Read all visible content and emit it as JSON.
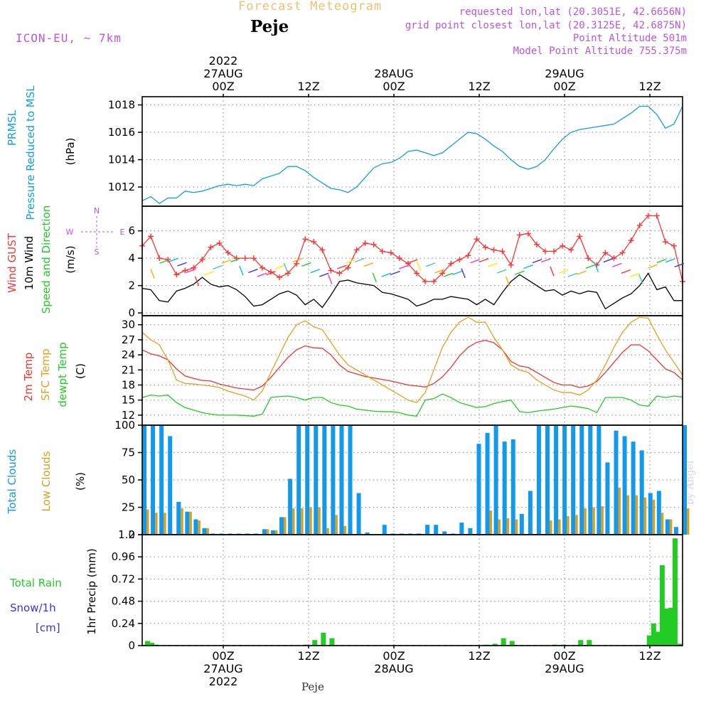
{
  "header": {
    "title": "Forecast Meteogram",
    "location": "Peje",
    "model": "ICON-EU, ~ 7km",
    "info": [
      "requested lon,lat (20.3051E, 42.6656N)",
      "grid point closest lon,lat (20.3125E, 42.6875N)",
      "Point Altitude 501m",
      "Model Point Altitude 755.375m"
    ]
  },
  "footer": {
    "location": "Peje",
    "watermark": "by Angel"
  },
  "time_axis": {
    "ticks": [
      {
        "lines_top": [
          "2022",
          "27AUG",
          "00Z"
        ],
        "lines_bottom": [
          "00Z",
          "27AUG",
          "2022"
        ]
      },
      {
        "lines_top": [
          "12Z"
        ],
        "lines_bottom": [
          "12Z"
        ]
      },
      {
        "lines_top": [
          "28AUG",
          "00Z"
        ],
        "lines_bottom": [
          "00Z",
          "28AUG"
        ]
      },
      {
        "lines_top": [
          "12Z"
        ],
        "lines_bottom": [
          "12Z"
        ]
      },
      {
        "lines_top": [
          "29AUG",
          "00Z"
        ],
        "lines_bottom": [
          "00Z",
          "29AUG"
        ]
      },
      {
        "lines_top": [
          "12Z"
        ],
        "lines_bottom": [
          "12Z"
        ]
      }
    ]
  },
  "colors": {
    "pressure": "#119ee6",
    "gust": "#ff3333",
    "wind": "#000000",
    "wind_dir_label": "#22cc22",
    "temp": "#ee3333",
    "sfc_temp": "#e6a020",
    "dewpt": "#22cc22",
    "total_clouds": "#1199ee",
    "low_clouds": "#d6a020",
    "rain": "#22cc22",
    "snow": "#3333ee",
    "header_info": "#bb55dd",
    "title": "#f0c070"
  },
  "chart_data": [
    {
      "type": "line",
      "panel": "pressure",
      "ylabel": [
        "PRMSL",
        "Pressure Reduced to MSL",
        "(hPa)"
      ],
      "ylim": [
        1010.6,
        1018.6
      ],
      "yticks": [
        1012,
        1014,
        1016,
        1018
      ],
      "x_hours": [
        0,
        2,
        4,
        6,
        8,
        10,
        12,
        14,
        16,
        18,
        20,
        22,
        24,
        26,
        28,
        30,
        32,
        34,
        36,
        38,
        40,
        42,
        44,
        46,
        48,
        50,
        52,
        54,
        56,
        58,
        60,
        62,
        64,
        66,
        68,
        70,
        72,
        74,
        76,
        78,
        80,
        82,
        84,
        86,
        88,
        90,
        92,
        94,
        96,
        98,
        100,
        102,
        104,
        106,
        108,
        110,
        112,
        114,
        116,
        118,
        120,
        122,
        124,
        126
      ],
      "series": [
        {
          "values": [
            1011.0,
            1011.3,
            1010.8,
            1011.2,
            1011.2,
            1011.7,
            1011.6,
            1011.7,
            1011.9,
            1012.1,
            1012.2,
            1012.1,
            1012.2,
            1012.1,
            1012.6,
            1012.8,
            1013.0,
            1013.5,
            1013.5,
            1013.2,
            1012.7,
            1012.3,
            1011.9,
            1011.8,
            1011.6,
            1012.0,
            1012.7,
            1013.4,
            1013.7,
            1013.8,
            1014.1,
            1014.6,
            1014.7,
            1014.5,
            1014.3,
            1014.5,
            1015.0,
            1015.5,
            1016.0,
            1015.9,
            1015.5,
            1015.0,
            1014.6,
            1014.0,
            1013.5,
            1013.3,
            1013.5,
            1014.0,
            1014.8,
            1015.5,
            1016.0,
            1016.2,
            1016.3,
            1016.4,
            1016.5,
            1016.6,
            1017.0,
            1017.4,
            1017.9,
            1017.9,
            1017.3,
            1016.3,
            1016.6,
            1017.9
          ]
        }
      ]
    },
    {
      "type": "line",
      "panel": "wind",
      "ylabel": [
        "Wind GUST",
        "10m Wind",
        "Speed and Direction",
        "(m/s)"
      ],
      "compass": [
        "N",
        "W",
        "E",
        "S"
      ],
      "ylim": [
        -0.2,
        7.8
      ],
      "yticks": [
        0,
        2,
        4,
        6
      ],
      "x_hours": [
        0,
        2,
        4,
        6,
        8,
        10,
        12,
        14,
        16,
        18,
        20,
        22,
        24,
        26,
        28,
        30,
        32,
        34,
        36,
        38,
        40,
        42,
        44,
        46,
        48,
        50,
        52,
        54,
        56,
        58,
        60,
        62,
        64,
        66,
        68,
        70,
        72,
        74,
        76,
        78,
        80,
        82,
        84,
        86,
        88,
        90,
        92,
        94,
        96,
        98,
        100,
        102,
        104,
        106,
        108,
        110,
        112,
        114,
        116,
        118,
        120,
        122,
        124,
        126
      ],
      "series": [
        {
          "name": "Wind GUST",
          "values": [
            4.9,
            5.6,
            4.0,
            3.9,
            2.8,
            3.1,
            3.3,
            3.9,
            4.8,
            5.1,
            4.4,
            4.0,
            4.0,
            4.0,
            3.3,
            3.0,
            2.6,
            2.9,
            3.6,
            5.4,
            5.2,
            4.6,
            3.1,
            2.9,
            3.3,
            4.6,
            5.1,
            5.0,
            4.5,
            4.4,
            4.0,
            3.6,
            2.9,
            2.3,
            2.3,
            2.9,
            3.6,
            3.9,
            4.2,
            5.4,
            4.8,
            4.6,
            4.5,
            3.5,
            5.7,
            5.8,
            5.0,
            4.5,
            4.5,
            4.9,
            4.6,
            5.6,
            4.0,
            3.5,
            4.4,
            4.0,
            4.4,
            5.3,
            6.4,
            7.1,
            7.1,
            5.2,
            4.9,
            2.3
          ]
        },
        {
          "name": "10m Wind",
          "values": [
            1.8,
            1.7,
            0.9,
            0.8,
            1.6,
            1.8,
            2.1,
            2.6,
            2.1,
            1.9,
            2.0,
            1.7,
            1.2,
            0.5,
            0.6,
            1.0,
            1.4,
            1.6,
            1.3,
            0.6,
            1.0,
            0.4,
            1.3,
            2.3,
            2.4,
            2.2,
            2.1,
            2.0,
            1.5,
            1.4,
            1.2,
            1.0,
            0.5,
            0.7,
            1.0,
            1.0,
            1.2,
            1.1,
            1.0,
            0.6,
            1.0,
            0.6,
            1.5,
            2.3,
            2.8,
            2.4,
            2.0,
            1.6,
            1.7,
            1.3,
            1.6,
            1.4,
            1.6,
            1.5,
            0.3,
            0.7,
            1.1,
            1.4,
            2.0,
            2.9,
            1.7,
            1.9,
            0.9,
            0.9
          ]
        }
      ]
    },
    {
      "type": "line",
      "panel": "temperature",
      "ylabel": [
        "2m Temp",
        "SFC Temp",
        "dewpt Temp",
        "(C)"
      ],
      "ylim": [
        10,
        31.8
      ],
      "yticks": [
        12,
        15,
        18,
        21,
        24,
        27,
        30
      ],
      "x_hours": [
        0,
        2,
        4,
        6,
        8,
        10,
        12,
        14,
        16,
        18,
        20,
        22,
        24,
        26,
        28,
        30,
        32,
        34,
        36,
        38,
        40,
        42,
        44,
        46,
        48,
        50,
        52,
        54,
        56,
        58,
        60,
        62,
        64,
        66,
        68,
        70,
        72,
        74,
        76,
        78,
        80,
        82,
        84,
        86,
        88,
        90,
        92,
        94,
        96,
        98,
        100,
        102,
        104,
        106,
        108,
        110,
        112,
        114,
        116,
        118,
        120,
        122,
        124,
        126
      ],
      "series": [
        {
          "name": "2m Temp",
          "values": [
            25.0,
            24.2,
            23.8,
            23.0,
            21.2,
            19.8,
            19.3,
            18.9,
            18.8,
            18.2,
            17.8,
            17.4,
            17.2,
            17.0,
            17.8,
            19.5,
            21.5,
            23.5,
            25.0,
            25.8,
            25.4,
            25.3,
            24.0,
            22.0,
            20.7,
            20.2,
            19.7,
            19.4,
            19.1,
            18.8,
            18.4,
            18.0,
            17.8,
            17.6,
            18.3,
            19.6,
            21.5,
            23.8,
            25.5,
            26.5,
            26.9,
            26.4,
            25.0,
            22.7,
            21.8,
            21.5,
            20.5,
            19.5,
            18.5,
            18.0,
            18.0,
            17.5,
            17.8,
            18.7,
            20.5,
            22.5,
            24.5,
            26.0,
            26.0,
            24.8,
            23.0,
            21.2,
            20.5,
            19.0
          ]
        },
        {
          "name": "SFC Temp",
          "values": [
            28.5,
            27.0,
            26.0,
            23.0,
            19.0,
            18.3,
            18.2,
            18.0,
            17.8,
            17.5,
            16.8,
            16.3,
            15.8,
            15.0,
            16.8,
            20.5,
            24.0,
            27.5,
            30.0,
            30.8,
            29.6,
            29.0,
            26.5,
            24.0,
            22.0,
            21.0,
            20.0,
            19.0,
            18.0,
            17.0,
            16.0,
            15.0,
            14.5,
            16.5,
            21.0,
            25.5,
            28.5,
            30.5,
            31.5,
            30.5,
            30.5,
            27.5,
            25.0,
            22.0,
            21.0,
            20.5,
            19.0,
            18.0,
            17.0,
            16.5,
            16.5,
            16.0,
            17.0,
            19.0,
            22.0,
            25.5,
            28.5,
            30.5,
            31.5,
            31.3,
            28.0,
            25.0,
            22.5,
            20.0
          ]
        },
        {
          "name": "dewpt Temp",
          "values": [
            15.5,
            16.0,
            15.8,
            16.0,
            14.5,
            13.5,
            13.0,
            12.5,
            12.2,
            12.0,
            12.0,
            12.0,
            11.9,
            11.8,
            12.2,
            15.5,
            15.7,
            15.8,
            15.5,
            15.0,
            15.5,
            15.5,
            14.5,
            14.0,
            13.8,
            13.2,
            13.0,
            12.8,
            12.7,
            12.7,
            12.5,
            12.0,
            11.8,
            15.0,
            15.3,
            16.2,
            15.5,
            14.5,
            14.0,
            13.5,
            13.7,
            14.3,
            14.7,
            15.0,
            12.7,
            12.5,
            12.8,
            13.0,
            13.2,
            13.5,
            13.8,
            13.6,
            13.3,
            12.5,
            15.5,
            15.5,
            15.5,
            15.0,
            14.0,
            13.8,
            15.8,
            15.5,
            15.8,
            15.6
          ]
        }
      ]
    },
    {
      "type": "bar",
      "panel": "clouds",
      "ylabel": [
        "Total Clouds",
        "Low Clouds",
        "(%)"
      ],
      "ylim": [
        0,
        100
      ],
      "yticks": [
        0,
        25,
        50,
        75,
        100
      ],
      "x_hours": [
        0,
        2,
        4,
        6,
        8,
        10,
        12,
        14,
        16,
        18,
        20,
        22,
        24,
        26,
        28,
        30,
        32,
        34,
        36,
        38,
        40,
        42,
        44,
        46,
        48,
        50,
        52,
        54,
        56,
        58,
        60,
        62,
        64,
        66,
        68,
        70,
        72,
        74,
        76,
        78,
        80,
        82,
        84,
        86,
        88,
        90,
        92,
        94,
        96,
        98,
        100,
        102,
        104,
        106,
        108,
        110,
        112,
        114,
        116,
        118,
        120,
        122,
        124,
        126
      ],
      "series": [
        {
          "name": "Total Clouds",
          "values": [
            100,
            100,
            100,
            90,
            30,
            21,
            14,
            6,
            1,
            1,
            1,
            1,
            1,
            1,
            5,
            4,
            16,
            51,
            100,
            100,
            100,
            100,
            100,
            100,
            100,
            38,
            2,
            0,
            9,
            1,
            1,
            1,
            1,
            9,
            9,
            3,
            1,
            11,
            6,
            83,
            93,
            100,
            85,
            87,
            19,
            40,
            100,
            100,
            100,
            100,
            100,
            100,
            100,
            100,
            66,
            95,
            90,
            85,
            77,
            38,
            40,
            14,
            7,
            100
          ]
        },
        {
          "name": "Low Clouds",
          "values": [
            23,
            20,
            20,
            0,
            24,
            21,
            13,
            6,
            0,
            0,
            0,
            0,
            0,
            0,
            5,
            4,
            16,
            24,
            24,
            25,
            25,
            6,
            18,
            8,
            0,
            0,
            0,
            0,
            0,
            0,
            0,
            0,
            0,
            0,
            0,
            0,
            0,
            0,
            0,
            0,
            22,
            14,
            15,
            14,
            0,
            0,
            0,
            13,
            14,
            17,
            18,
            24,
            25,
            26,
            0,
            43,
            36,
            36,
            34,
            32,
            20,
            14,
            0,
            24
          ]
        }
      ]
    },
    {
      "type": "bar",
      "panel": "precipitation",
      "ylabel": [
        "Total Rain",
        "Snow/1h",
        "[cm]",
        "1hr Precip (mm)"
      ],
      "ylim": [
        0,
        1.2
      ],
      "yticks": [
        0,
        0.24,
        0.48,
        0.72,
        0.96,
        1.2
      ],
      "x_hours": [
        1,
        2,
        3,
        38,
        40,
        42,
        44,
        80,
        82,
        84,
        86,
        96,
        98,
        102,
        104,
        118,
        119,
        120,
        121,
        122,
        123,
        124,
        125
      ],
      "series": [
        {
          "name": "Total Rain",
          "values": [
            0.05,
            0.03,
            0.01,
            0.01,
            0.06,
            0.14,
            0.08,
            0.01,
            0.02,
            0.08,
            0.05,
            0.01,
            0.01,
            0.06,
            0.06,
            0.11,
            0.24,
            0.15,
            0.87,
            0.4,
            0.41,
            1.16,
            0.02
          ]
        }
      ]
    }
  ]
}
